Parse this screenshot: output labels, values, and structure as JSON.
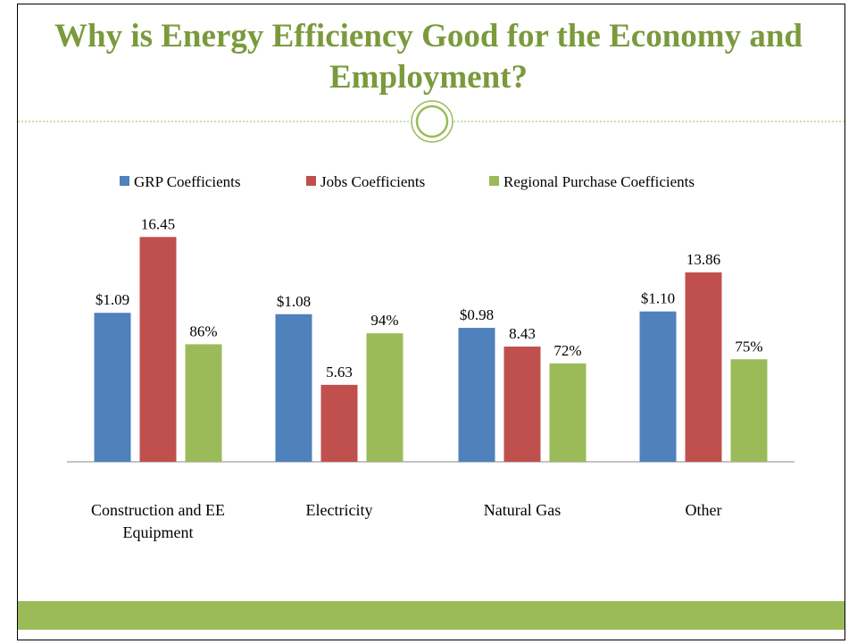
{
  "chart_data": {
    "type": "bar",
    "title": "Why is Energy Efficiency Good for the Economy and Employment?",
    "categories": [
      "Construction and EE Equipment",
      "Electricity",
      "Natural Gas",
      "Other"
    ],
    "series": [
      {
        "name": "GRP Coefficients",
        "color": "#4f81bd",
        "values": [
          1.09,
          1.08,
          0.98,
          1.1
        ],
        "value_labels": [
          "$1.09",
          "$1.08",
          "$0.98",
          "$1.10"
        ]
      },
      {
        "name": "Jobs Coefficients",
        "color": "#c0504d",
        "values": [
          16.45,
          5.63,
          8.43,
          13.86
        ]
      },
      {
        "name": "Regional Purchase Coefficients",
        "color": "#9bbb59",
        "values": [
          86,
          94,
          72,
          75
        ],
        "value_labels": [
          "86%",
          "94%",
          "72%",
          "75%"
        ]
      }
    ]
  }
}
